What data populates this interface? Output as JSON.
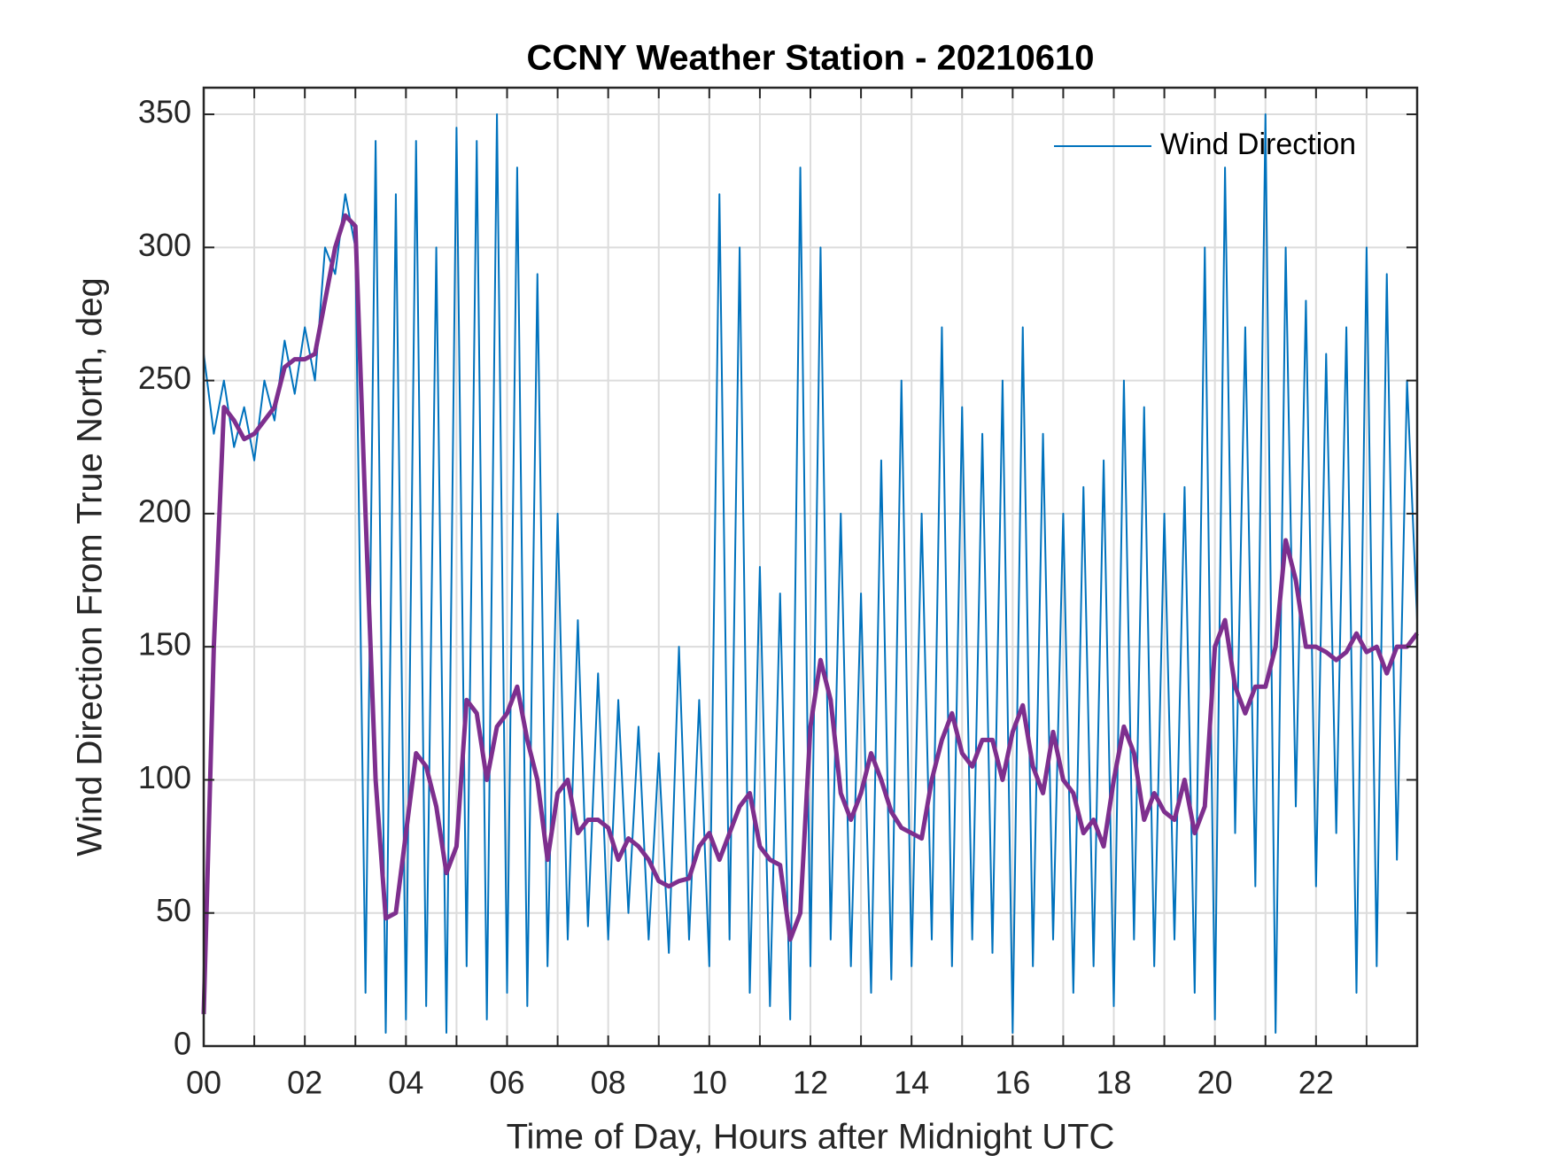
{
  "chart_data": {
    "type": "line",
    "title": "CCNY Weather Station - 20210610",
    "xlabel": "Time of Day, Hours after Midnight UTC",
    "ylabel": "Wind Direction From True North, deg",
    "xlim": [
      0,
      24
    ],
    "ylim": [
      0,
      360
    ],
    "xticks": [
      {
        "value": 0,
        "label": "00"
      },
      {
        "value": 2,
        "label": "02"
      },
      {
        "value": 4,
        "label": "04"
      },
      {
        "value": 6,
        "label": "06"
      },
      {
        "value": 8,
        "label": "08"
      },
      {
        "value": 10,
        "label": "10"
      },
      {
        "value": 12,
        "label": "12"
      },
      {
        "value": 14,
        "label": "14"
      },
      {
        "value": 16,
        "label": "16"
      },
      {
        "value": 18,
        "label": "18"
      },
      {
        "value": 20,
        "label": "20"
      },
      {
        "value": 22,
        "label": "22"
      }
    ],
    "xminorticks": [
      1,
      3,
      5,
      7,
      9,
      11,
      13,
      15,
      17,
      19,
      21,
      23
    ],
    "yticks": [
      0,
      50,
      100,
      150,
      200,
      250,
      300,
      350
    ],
    "grid": true,
    "legend": "top-right",
    "x": [
      0,
      0.2,
      0.4,
      0.6,
      0.8,
      1,
      1.2,
      1.4,
      1.6,
      1.8,
      2,
      2.2,
      2.4,
      2.6,
      2.8,
      3,
      3.2,
      3.4,
      3.6,
      3.8,
      4,
      4.2,
      4.4,
      4.6,
      4.8,
      5,
      5.2,
      5.4,
      5.6,
      5.8,
      6,
      6.2,
      6.4,
      6.6,
      6.8,
      7,
      7.2,
      7.4,
      7.6,
      7.8,
      8,
      8.2,
      8.4,
      8.6,
      8.8,
      9,
      9.2,
      9.4,
      9.6,
      9.8,
      10,
      10.2,
      10.4,
      10.6,
      10.8,
      11,
      11.2,
      11.4,
      11.6,
      11.8,
      12,
      12.2,
      12.4,
      12.6,
      12.8,
      13,
      13.2,
      13.4,
      13.6,
      13.8,
      14,
      14.2,
      14.4,
      14.6,
      14.8,
      15,
      15.2,
      15.4,
      15.6,
      15.8,
      16,
      16.2,
      16.4,
      16.6,
      16.8,
      17,
      17.2,
      17.4,
      17.6,
      17.8,
      18,
      18.2,
      18.4,
      18.6,
      18.8,
      19,
      19.2,
      19.4,
      19.6,
      19.8,
      20,
      20.2,
      20.4,
      20.6,
      20.8,
      21,
      21.2,
      21.4,
      21.6,
      21.8,
      22,
      22.2,
      22.4,
      22.6,
      22.8,
      23,
      23.2,
      23.4,
      23.6,
      23.8,
      24
    ],
    "series": [
      {
        "name": "Wind Direction",
        "color": "#0072bd",
        "values": [
          260,
          230,
          250,
          225,
          240,
          220,
          250,
          235,
          265,
          245,
          270,
          250,
          300,
          290,
          320,
          300,
          20,
          340,
          5,
          320,
          10,
          340,
          15,
          300,
          5,
          345,
          30,
          340,
          10,
          350,
          20,
          330,
          15,
          290,
          30,
          200,
          40,
          160,
          45,
          140,
          40,
          130,
          50,
          120,
          40,
          110,
          35,
          150,
          40,
          130,
          30,
          320,
          40,
          300,
          20,
          180,
          15,
          170,
          10,
          330,
          30,
          300,
          40,
          200,
          30,
          170,
          20,
          220,
          25,
          250,
          30,
          200,
          40,
          270,
          30,
          240,
          40,
          230,
          35,
          250,
          5,
          270,
          30,
          230,
          40,
          200,
          20,
          210,
          30,
          220,
          15,
          250,
          40,
          240,
          30,
          200,
          40,
          210,
          20,
          300,
          10,
          330,
          80,
          270,
          60,
          350,
          5,
          300,
          90,
          280,
          60,
          260,
          80,
          270,
          20,
          300,
          30,
          290,
          70,
          250,
          160
        ]
      },
      {
        "color": "#7e2f8e",
        "values": [
          12,
          150,
          240,
          235,
          228,
          230,
          235,
          240,
          255,
          258,
          258,
          260,
          280,
          300,
          312,
          308,
          200,
          100,
          48,
          50,
          80,
          110,
          105,
          90,
          65,
          75,
          130,
          125,
          100,
          120,
          125,
          135,
          115,
          100,
          70,
          95,
          100,
          80,
          85,
          85,
          82,
          70,
          78,
          75,
          70,
          62,
          60,
          62,
          63,
          75,
          80,
          70,
          80,
          90,
          95,
          75,
          70,
          68,
          40,
          50,
          120,
          145,
          130,
          95,
          85,
          95,
          110,
          100,
          88,
          82,
          80,
          78,
          100,
          115,
          125,
          110,
          105,
          115,
          115,
          100,
          118,
          128,
          105,
          95,
          118,
          100,
          95,
          80,
          85,
          75,
          100,
          120,
          110,
          85,
          95,
          88,
          85,
          100,
          80,
          90,
          150,
          160,
          135,
          125,
          135,
          135,
          150,
          190,
          175,
          150,
          150,
          148,
          145,
          148,
          155,
          148,
          150,
          140,
          150,
          150,
          155
        ]
      }
    ]
  }
}
